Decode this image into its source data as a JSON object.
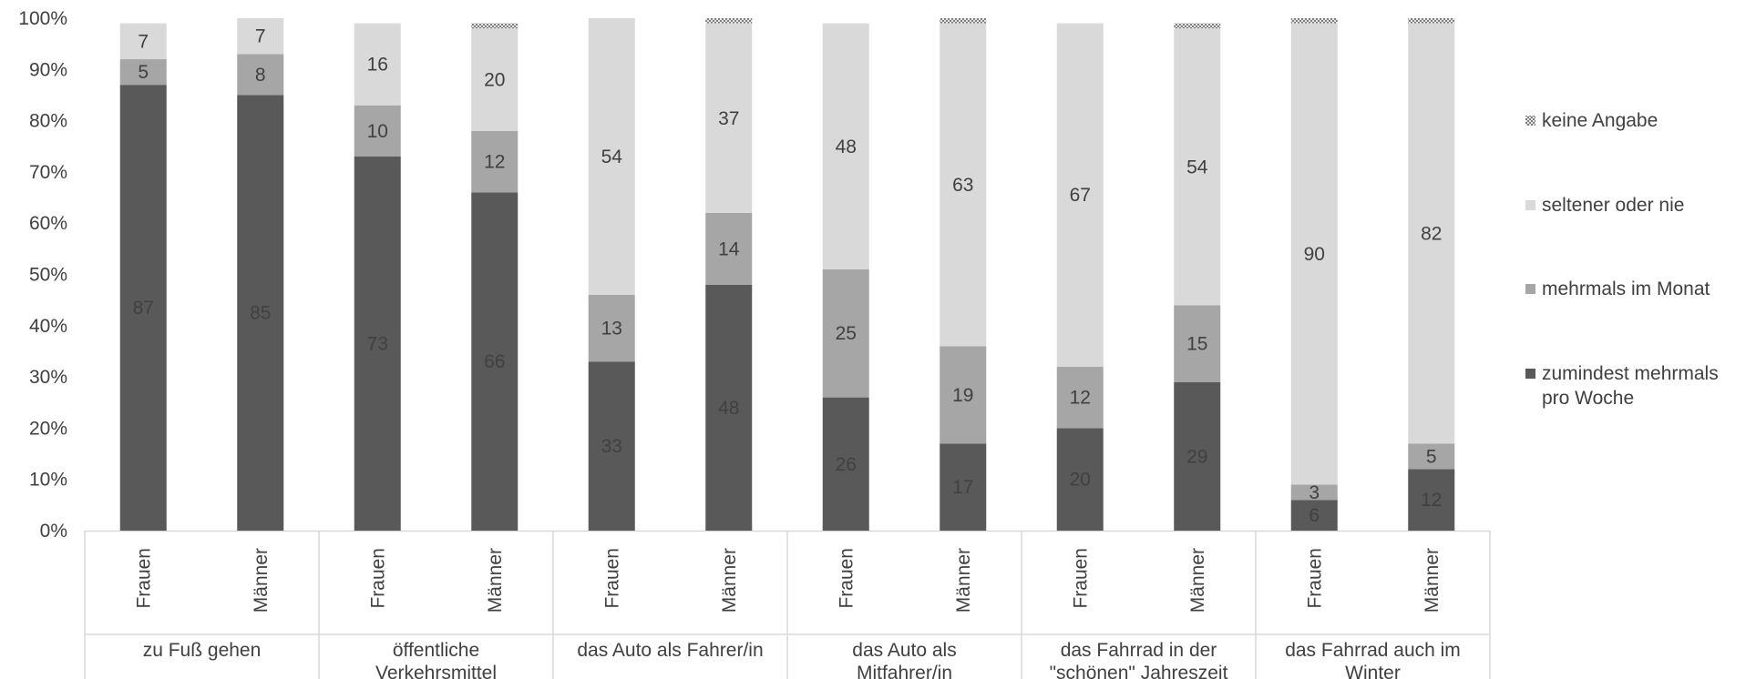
{
  "chart_data": {
    "type": "bar",
    "stacked": true,
    "title": "",
    "xlabel": "",
    "ylabel": "",
    "ylim": [
      0,
      100
    ],
    "yticks": [
      "0%",
      "10%",
      "20%",
      "30%",
      "40%",
      "50%",
      "60%",
      "70%",
      "80%",
      "90%",
      "100%"
    ],
    "groups": [
      {
        "label_lines": [
          "zu Fuß gehen"
        ],
        "categories": [
          "Frauen",
          "Männer"
        ]
      },
      {
        "label_lines": [
          "öffentliche",
          "Verkehrsmittel"
        ],
        "categories": [
          "Frauen",
          "Männer"
        ]
      },
      {
        "label_lines": [
          "das Auto als Fahrer/in"
        ],
        "categories": [
          "Frauen",
          "Männer"
        ]
      },
      {
        "label_lines": [
          "das Auto als",
          "Mitfahrer/in"
        ],
        "categories": [
          "Frauen",
          "Männer"
        ]
      },
      {
        "label_lines": [
          "das Fahrrad in der",
          "\"schönen\" Jahreszeit"
        ],
        "categories": [
          "Frauen",
          "Männer"
        ]
      },
      {
        "label_lines": [
          "das Fahrrad auch im",
          "Winter"
        ],
        "categories": [
          "Frauen",
          "Männer"
        ]
      }
    ],
    "series": [
      {
        "name": "zumindest mehrmals pro Woche",
        "legend_lines": [
          "zumindest mehrmals",
          "pro Woche"
        ],
        "color": "#595959",
        "label_color": "#ffffff",
        "values": [
          87,
          85,
          73,
          66,
          33,
          48,
          26,
          17,
          20,
          29,
          6,
          12
        ]
      },
      {
        "name": "mehrmals im Monat",
        "legend_lines": [
          "mehrmals im Monat"
        ],
        "color": "#a6a6a6",
        "label_color": "#404040",
        "values": [
          5,
          8,
          10,
          12,
          13,
          14,
          25,
          19,
          12,
          15,
          3,
          5
        ]
      },
      {
        "name": "seltener oder nie",
        "legend_lines": [
          "seltener oder nie"
        ],
        "color": "#d9d9d9",
        "label_color": "#404040",
        "values": [
          7,
          7,
          16,
          20,
          54,
          37,
          48,
          63,
          67,
          54,
          90,
          82
        ]
      },
      {
        "name": "keine Angabe",
        "legend_lines": [
          "keine Angabe"
        ],
        "color": "#bfbfbf",
        "pattern": "hatch",
        "show_labels": false,
        "values": [
          0,
          1,
          0,
          1,
          0,
          1,
          0,
          1,
          0,
          1,
          1,
          2
        ]
      }
    ],
    "legend": {
      "position": "right",
      "order": [
        "keine Angabe",
        "seltener oder nie",
        "mehrmals im Monat",
        "zumindest mehrmals pro Woche"
      ]
    },
    "grid": false
  }
}
